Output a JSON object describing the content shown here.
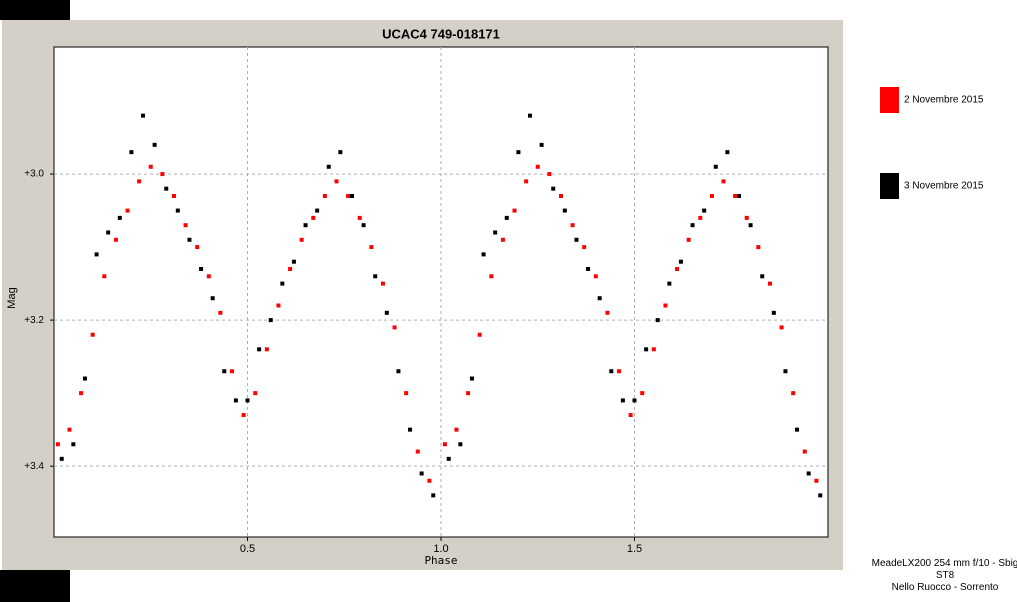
{
  "chart_data": {
    "type": "scatter",
    "title": "UCAC4 749-018171",
    "x_label": "Phase",
    "y_label": "Mag",
    "xlim": [
      0,
      2
    ],
    "ylim": [
      3.497,
      2.826
    ],
    "xticks": [
      0.5,
      {
        "value": 1,
        "label": "1.0"
      },
      1.5
    ],
    "yticks": [
      {
        "value": 3,
        "label": "+3.0"
      },
      {
        "value": 3.2,
        "label": "+3.2"
      },
      {
        "value": 3.4,
        "label": "+3.4"
      }
    ],
    "grid": true,
    "legend": "right",
    "series": [
      {
        "name": "2 Novembre 2015",
        "color": "#ff0000",
        "x": [
          0.01,
          0.04,
          0.07,
          0.1,
          0.13,
          0.16,
          0.19,
          0.22,
          0.25,
          0.28,
          0.31,
          0.34,
          0.37,
          0.4,
          0.43,
          0.46,
          0.49,
          0.52,
          0.55,
          0.58,
          0.61,
          0.64,
          0.67,
          0.7,
          0.73,
          0.76,
          0.79,
          0.82,
          0.85,
          0.88,
          0.91,
          0.94,
          0.97,
          1.01,
          1.04,
          1.07,
          1.1,
          1.13,
          1.16,
          1.19,
          1.22,
          1.25,
          1.28,
          1.31,
          1.34,
          1.37,
          1.4,
          1.43,
          1.46,
          1.49,
          1.52,
          1.55,
          1.58,
          1.61,
          1.64,
          1.67,
          1.7,
          1.73,
          1.76,
          1.79,
          1.82,
          1.85,
          1.88,
          1.91,
          1.94,
          1.97
        ],
        "values": [
          3.37,
          3.35,
          3.3,
          3.22,
          3.14,
          3.09,
          3.05,
          3.01,
          2.99,
          3.0,
          3.03,
          3.07,
          3.1,
          3.14,
          3.19,
          3.27,
          3.33,
          3.3,
          3.24,
          3.18,
          3.13,
          3.09,
          3.06,
          3.03,
          3.01,
          3.03,
          3.06,
          3.1,
          3.15,
          3.21,
          3.3,
          3.38,
          3.42,
          3.37,
          3.35,
          3.3,
          3.22,
          3.14,
          3.09,
          3.05,
          3.01,
          2.99,
          3.0,
          3.03,
          3.07,
          3.1,
          3.14,
          3.19,
          3.27,
          3.33,
          3.3,
          3.24,
          3.18,
          3.13,
          3.09,
          3.06,
          3.03,
          3.01,
          3.03,
          3.06,
          3.1,
          3.15,
          3.21,
          3.3,
          3.38,
          3.42
        ]
      },
      {
        "name": "3 Novembre 2015",
        "color": "#000000",
        "x": [
          0.02,
          0.05,
          0.08,
          0.11,
          0.14,
          0.17,
          0.2,
          0.23,
          0.26,
          0.29,
          0.32,
          0.35,
          0.38,
          0.41,
          0.44,
          0.47,
          0.5,
          0.53,
          0.56,
          0.59,
          0.62,
          0.65,
          0.68,
          0.71,
          0.74,
          0.77,
          0.8,
          0.83,
          0.86,
          0.89,
          0.92,
          0.95,
          0.98,
          1.02,
          1.05,
          1.08,
          1.11,
          1.14,
          1.17,
          1.2,
          1.23,
          1.26,
          1.29,
          1.32,
          1.35,
          1.38,
          1.41,
          1.44,
          1.47,
          1.5,
          1.53,
          1.56,
          1.59,
          1.62,
          1.65,
          1.68,
          1.71,
          1.74,
          1.77,
          1.8,
          1.83,
          1.86,
          1.89,
          1.92,
          1.95,
          1.98
        ],
        "values": [
          3.39,
          3.37,
          3.28,
          3.11,
          3.08,
          3.06,
          2.97,
          2.92,
          2.96,
          3.02,
          3.05,
          3.09,
          3.13,
          3.17,
          3.27,
          3.31,
          3.31,
          3.24,
          3.2,
          3.15,
          3.12,
          3.07,
          3.05,
          2.99,
          2.97,
          3.03,
          3.07,
          3.14,
          3.19,
          3.27,
          3.35,
          3.41,
          3.44,
          3.39,
          3.37,
          3.28,
          3.11,
          3.08,
          3.06,
          2.97,
          2.92,
          2.96,
          3.02,
          3.05,
          3.09,
          3.13,
          3.17,
          3.27,
          3.31,
          3.31,
          3.24,
          3.2,
          3.15,
          3.12,
          3.07,
          3.05,
          2.99,
          2.97,
          3.03,
          3.07,
          3.14,
          3.19,
          3.27,
          3.35,
          3.41,
          3.44
        ]
      }
    ],
    "instrument": "MeadeLX200 254 mm f/10 - Sbig ST8",
    "credit": "Nello Ruocco - Sorrento"
  }
}
